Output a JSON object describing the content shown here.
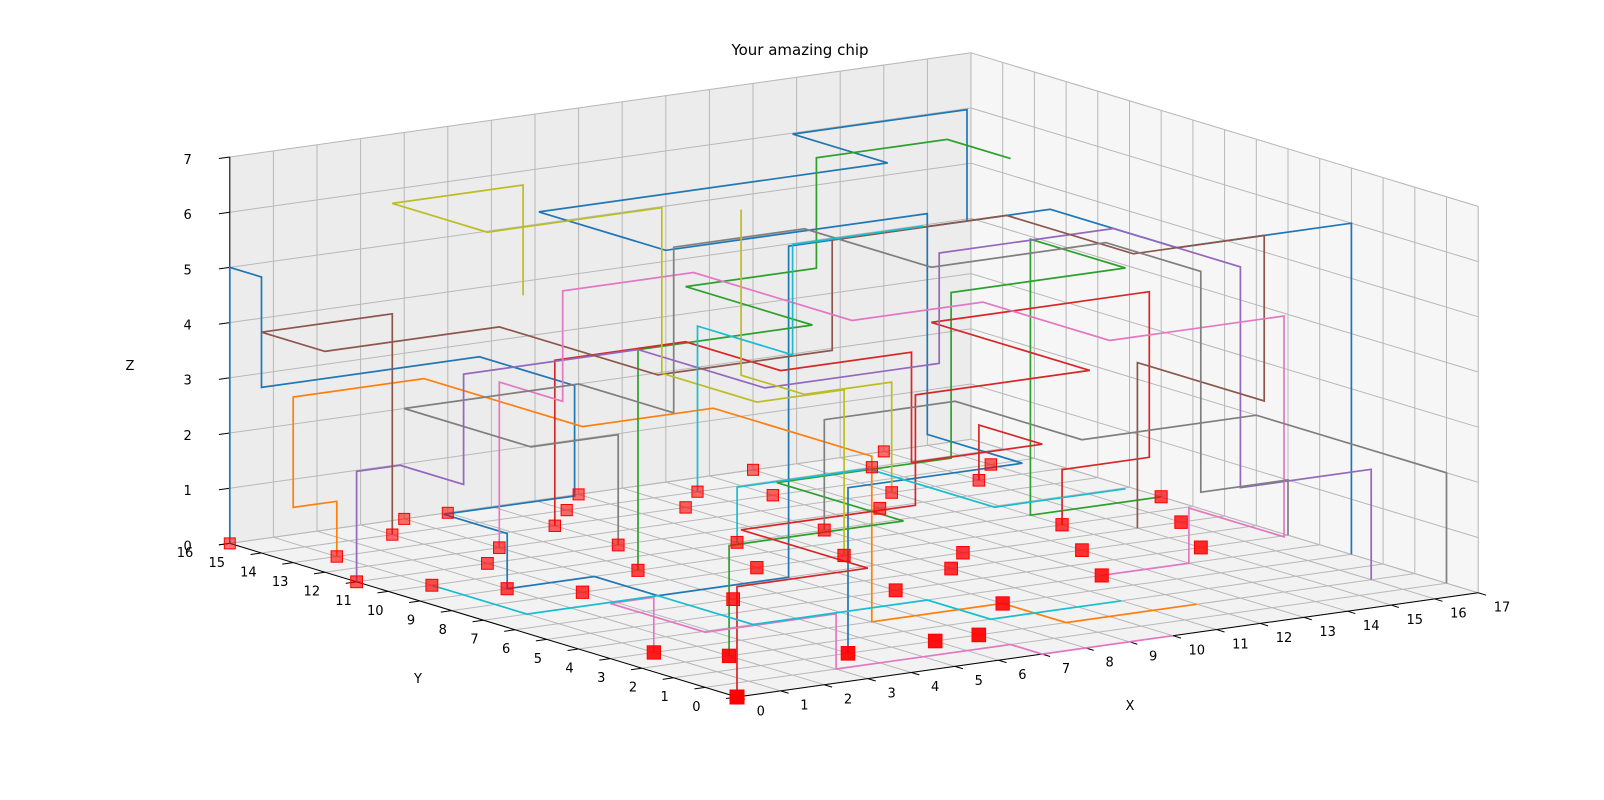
{
  "chart_data": {
    "type": "line3d",
    "title": "Your amazing chip",
    "xlabel": "X",
    "ylabel": "Y",
    "zlabel": "Z",
    "xlim": [
      0,
      17
    ],
    "ylim": [
      0,
      16
    ],
    "zlim": [
      0,
      7
    ],
    "xticks": [
      "0",
      "1",
      "2",
      "3",
      "4",
      "5",
      "6",
      "7",
      "8",
      "9",
      "10",
      "11",
      "12",
      "13",
      "14",
      "15",
      "16",
      "17"
    ],
    "yticks": [
      "0",
      "1",
      "2",
      "3",
      "4",
      "5",
      "6",
      "7",
      "8",
      "9",
      "10",
      "11",
      "12",
      "13",
      "14",
      "15",
      "16"
    ],
    "zticks": [
      "0",
      "1",
      "2",
      "3",
      "4",
      "5",
      "6",
      "7"
    ],
    "grid": true,
    "colors": {
      "gate": "#ff0000",
      "series_palette": [
        "#1f77b4",
        "#ff7f0e",
        "#2ca02c",
        "#d62728",
        "#9467bd",
        "#8c564b",
        "#e377c2",
        "#7f7f7f",
        "#bcbd22",
        "#17becf"
      ]
    },
    "gates": [
      [
        0,
        0,
        0
      ],
      [
        2,
        3,
        0
      ],
      [
        4,
        2,
        0
      ],
      [
        6,
        2,
        0
      ],
      [
        7,
        2,
        0
      ],
      [
        1,
        4,
        0
      ],
      [
        9,
        4,
        0
      ],
      [
        8,
        6,
        0
      ],
      [
        12,
        5,
        0
      ],
      [
        13,
        7,
        0
      ],
      [
        15,
        6,
        0
      ],
      [
        17,
        10,
        0
      ],
      [
        10,
        7,
        0
      ],
      [
        5,
        7,
        0
      ],
      [
        3,
        9,
        0
      ],
      [
        0,
        12,
        0
      ],
      [
        1,
        14,
        0
      ],
      [
        0,
        16,
        0
      ],
      [
        3,
        15,
        0
      ],
      [
        4,
        13,
        0
      ],
      [
        6,
        12,
        0
      ],
      [
        5,
        10,
        0
      ],
      [
        7,
        9,
        0
      ],
      [
        9,
        9,
        0
      ],
      [
        11,
        8,
        0
      ],
      [
        14,
        9,
        0
      ],
      [
        16,
        8,
        0
      ],
      [
        2,
        10,
        0
      ],
      [
        8,
        11,
        0
      ],
      [
        10,
        11,
        0
      ],
      [
        12,
        12,
        0
      ],
      [
        6,
        14,
        0
      ],
      [
        3,
        12,
        0
      ],
      [
        11,
        14,
        0
      ],
      [
        13,
        13,
        0
      ],
      [
        15,
        13,
        0
      ],
      [
        9,
        14,
        0
      ],
      [
        7,
        15,
        0
      ],
      [
        5,
        16,
        0
      ],
      [
        14,
        15,
        0
      ],
      [
        16,
        14,
        0
      ],
      [
        1,
        11,
        0
      ],
      [
        10,
        15,
        0
      ],
      [
        8,
        16,
        0
      ],
      [
        12,
        16,
        0
      ],
      [
        4,
        16,
        0
      ],
      [
        15,
        16,
        0
      ]
    ],
    "series": [
      {
        "color": "#1f77b4",
        "points": [
          [
            0,
            16,
            0
          ],
          [
            0,
            16,
            5
          ],
          [
            0,
            15,
            5
          ],
          [
            0,
            15,
            3
          ],
          [
            5,
            15,
            3
          ],
          [
            5,
            12,
            3
          ],
          [
            5,
            12,
            1
          ],
          [
            2,
            12,
            1
          ],
          [
            2,
            10,
            1
          ],
          [
            2,
            10,
            0
          ],
          [
            4,
            10,
            0
          ],
          [
            4,
            8,
            0
          ],
          [
            7,
            8,
            0
          ],
          [
            7,
            8,
            6
          ],
          [
            13,
            8,
            6
          ],
          [
            13,
            4,
            6
          ],
          [
            17,
            4,
            6
          ],
          [
            17,
            4,
            0
          ]
        ]
      },
      {
        "color": "#1f77b4",
        "points": [
          [
            4,
            2,
            0
          ],
          [
            4,
            2,
            3
          ],
          [
            8,
            2,
            3
          ],
          [
            8,
            5,
            3
          ],
          [
            8,
            5,
            7
          ],
          [
            2,
            5,
            7
          ],
          [
            2,
            9,
            7
          ],
          [
            10,
            9,
            7
          ],
          [
            10,
            12,
            7
          ],
          [
            14,
            12,
            7
          ],
          [
            14,
            12,
            5
          ]
        ]
      },
      {
        "color": "#ff7f0e",
        "points": [
          [
            1,
            14,
            0
          ],
          [
            1,
            14,
            1
          ],
          [
            0,
            14,
            1
          ],
          [
            0,
            14,
            3
          ],
          [
            3,
            14,
            3
          ],
          [
            3,
            9,
            3
          ],
          [
            6,
            9,
            3
          ],
          [
            6,
            4,
            3
          ],
          [
            6,
            4,
            0
          ],
          [
            9,
            4,
            0
          ],
          [
            9,
            2,
            0
          ],
          [
            12,
            2,
            0
          ]
        ]
      },
      {
        "color": "#2ca02c",
        "points": [
          [
            2,
            3,
            0
          ],
          [
            2,
            3,
            2
          ],
          [
            6,
            3,
            2
          ],
          [
            6,
            7,
            2
          ],
          [
            10,
            7,
            2
          ],
          [
            10,
            7,
            5
          ],
          [
            14,
            7,
            5
          ],
          [
            14,
            10,
            5
          ],
          [
            14,
            10,
            0
          ],
          [
            17,
            10,
            0
          ]
        ]
      },
      {
        "color": "#2ca02c",
        "points": [
          [
            5,
            10,
            0
          ],
          [
            5,
            10,
            4
          ],
          [
            9,
            10,
            4
          ],
          [
            9,
            14,
            4
          ],
          [
            12,
            14,
            4
          ],
          [
            12,
            14,
            6
          ],
          [
            15,
            14,
            6
          ],
          [
            15,
            12,
            6
          ]
        ]
      },
      {
        "color": "#d62728",
        "points": [
          [
            0,
            0,
            0
          ],
          [
            0,
            0,
            2
          ],
          [
            3,
            0,
            2
          ],
          [
            3,
            4,
            2
          ],
          [
            7,
            4,
            2
          ],
          [
            7,
            4,
            4
          ],
          [
            11,
            4,
            4
          ],
          [
            11,
            9,
            4
          ],
          [
            16,
            9,
            4
          ],
          [
            16,
            9,
            1
          ],
          [
            14,
            9,
            1
          ],
          [
            14,
            9,
            0
          ]
        ]
      },
      {
        "color": "#d62728",
        "points": [
          [
            6,
            14,
            0
          ],
          [
            6,
            14,
            3
          ],
          [
            9,
            14,
            3
          ],
          [
            9,
            11,
            3
          ],
          [
            12,
            11,
            3
          ],
          [
            12,
            11,
            1
          ],
          [
            15,
            11,
            1
          ],
          [
            15,
            13,
            1
          ],
          [
            15,
            13,
            0
          ]
        ]
      },
      {
        "color": "#9467bd",
        "points": [
          [
            0,
            12,
            0
          ],
          [
            0,
            12,
            2
          ],
          [
            1,
            12,
            2
          ],
          [
            1,
            10,
            2
          ],
          [
            1,
            10,
            4
          ],
          [
            5,
            10,
            4
          ],
          [
            5,
            6,
            4
          ],
          [
            9,
            6,
            4
          ],
          [
            9,
            6,
            6
          ],
          [
            13,
            6,
            6
          ],
          [
            13,
            2,
            6
          ],
          [
            13,
            2,
            2
          ],
          [
            16,
            2,
            2
          ],
          [
            16,
            2,
            0
          ]
        ]
      },
      {
        "color": "#8c564b",
        "points": [
          [
            3,
            15,
            0
          ],
          [
            3,
            15,
            4
          ],
          [
            0,
            15,
            4
          ],
          [
            0,
            13,
            4
          ],
          [
            4,
            13,
            4
          ],
          [
            4,
            8,
            4
          ],
          [
            8,
            8,
            4
          ],
          [
            8,
            8,
            6
          ],
          [
            12,
            8,
            6
          ],
          [
            12,
            4,
            6
          ],
          [
            15,
            4,
            6
          ],
          [
            15,
            4,
            3
          ],
          [
            15,
            8,
            3
          ],
          [
            15,
            8,
            0
          ]
        ]
      },
      {
        "color": "#e377c2",
        "points": [
          [
            4,
            13,
            0
          ],
          [
            4,
            13,
            3
          ],
          [
            4,
            11,
            3
          ],
          [
            4,
            11,
            5
          ],
          [
            7,
            11,
            5
          ],
          [
            7,
            6,
            5
          ],
          [
            10,
            6,
            5
          ],
          [
            10,
            2,
            5
          ],
          [
            14,
            2,
            5
          ],
          [
            14,
            2,
            1
          ],
          [
            14,
            5,
            1
          ],
          [
            14,
            5,
            0
          ],
          [
            12,
            5,
            0
          ]
        ]
      },
      {
        "color": "#e377c2",
        "points": [
          [
            1,
            4,
            0
          ],
          [
            1,
            4,
            1
          ],
          [
            0,
            4,
            1
          ],
          [
            0,
            1,
            1
          ],
          [
            3,
            1,
            1
          ],
          [
            3,
            1,
            0
          ],
          [
            7,
            1,
            0
          ],
          [
            7,
            0,
            0
          ],
          [
            10,
            0,
            0
          ]
        ]
      },
      {
        "color": "#7f7f7f",
        "points": [
          [
            6,
            12,
            0
          ],
          [
            6,
            12,
            2
          ],
          [
            4,
            12,
            2
          ],
          [
            4,
            16,
            2
          ],
          [
            8,
            16,
            2
          ],
          [
            8,
            13,
            2
          ],
          [
            8,
            13,
            5
          ],
          [
            11,
            13,
            5
          ],
          [
            11,
            9,
            5
          ],
          [
            15,
            9,
            5
          ],
          [
            15,
            6,
            5
          ],
          [
            15,
            6,
            1
          ],
          [
            17,
            6,
            1
          ],
          [
            17,
            6,
            0
          ]
        ]
      },
      {
        "color": "#7f7f7f",
        "points": [
          [
            10,
            11,
            0
          ],
          [
            10,
            11,
            2
          ],
          [
            13,
            11,
            2
          ],
          [
            13,
            7,
            2
          ],
          [
            17,
            7,
            2
          ],
          [
            17,
            1,
            2
          ],
          [
            17,
            1,
            0
          ]
        ]
      },
      {
        "color": "#bcbd22",
        "points": [
          [
            9,
            9,
            0
          ],
          [
            9,
            9,
            3
          ],
          [
            7,
            9,
            3
          ],
          [
            7,
            12,
            3
          ],
          [
            7,
            12,
            6
          ],
          [
            3,
            12,
            6
          ],
          [
            3,
            15,
            6
          ],
          [
            6,
            15,
            6
          ],
          [
            6,
            15,
            4
          ]
        ]
      },
      {
        "color": "#bcbd22",
        "points": [
          [
            13,
            13,
            0
          ],
          [
            13,
            13,
            2
          ],
          [
            11,
            13,
            2
          ],
          [
            11,
            15,
            2
          ],
          [
            11,
            15,
            5
          ]
        ]
      },
      {
        "color": "#17becf",
        "points": [
          [
            1,
            11,
            0
          ],
          [
            1,
            8,
            0
          ],
          [
            1,
            8,
            0
          ],
          [
            4,
            8,
            0
          ],
          [
            4,
            5,
            0
          ],
          [
            8,
            5,
            0
          ],
          [
            8,
            3,
            0
          ],
          [
            11,
            3,
            0
          ]
        ]
      },
      {
        "color": "#17becf",
        "points": [
          [
            8,
            11,
            0
          ],
          [
            8,
            11,
            1
          ],
          [
            11,
            11,
            1
          ],
          [
            11,
            7,
            1
          ],
          [
            14,
            7,
            1
          ]
        ]
      },
      {
        "color": "#17becf",
        "points": [
          [
            10,
            15,
            0
          ],
          [
            10,
            15,
            3
          ],
          [
            10,
            12,
            3
          ],
          [
            10,
            12,
            5
          ],
          [
            13,
            12,
            5
          ]
        ]
      }
    ]
  }
}
